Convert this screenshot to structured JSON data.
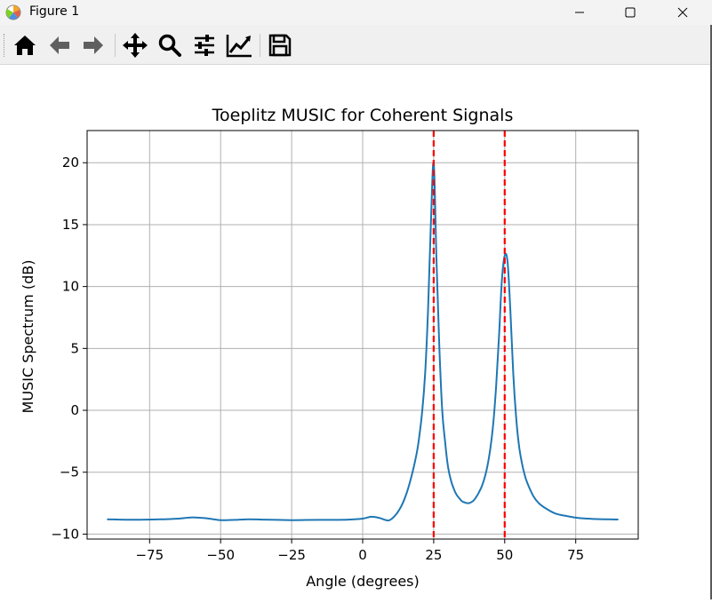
{
  "window": {
    "title": "Figure 1",
    "controls": [
      "minimize",
      "maximize",
      "close"
    ]
  },
  "toolbar": {
    "buttons": [
      {
        "name": "home",
        "icon": "home-icon"
      },
      {
        "name": "back",
        "icon": "arrow-left-icon"
      },
      {
        "name": "forward",
        "icon": "arrow-right-icon"
      },
      {
        "name": "pan",
        "icon": "move-icon"
      },
      {
        "name": "zoom",
        "icon": "magnifier-icon"
      },
      {
        "name": "configure-subplots",
        "icon": "sliders-icon"
      },
      {
        "name": "edit-axis",
        "icon": "line-chart-icon"
      },
      {
        "name": "save",
        "icon": "floppy-disk-icon"
      }
    ]
  },
  "chart_data": {
    "type": "line",
    "title": "Toeplitz MUSIC for Coherent Signals",
    "xlabel": "Angle (degrees)",
    "ylabel": "MUSIC Spectrum (dB)",
    "xlim": [
      -97,
      97
    ],
    "ylim": [
      -10.4,
      22.6
    ],
    "xticks": [
      -75,
      -50,
      -25,
      0,
      25,
      50,
      75
    ],
    "xtick_labels": [
      "−75",
      "−50",
      "−25",
      "0",
      "25",
      "50",
      "75"
    ],
    "yticks": [
      -10,
      -5,
      0,
      5,
      10,
      15,
      20
    ],
    "ytick_labels": [
      "−10",
      "−5",
      "0",
      "5",
      "10",
      "15",
      "20"
    ],
    "grid": true,
    "line_color": "#1f77b4",
    "series": [
      {
        "x": [
          -90,
          -80,
          -70,
          -65,
          -60,
          -55,
          -50,
          -45,
          -40,
          -35,
          -30,
          -25,
          -20,
          -15,
          -10,
          -5,
          0,
          3,
          6,
          9,
          11,
          13,
          15,
          17,
          19,
          20,
          21,
          22,
          23,
          24,
          25,
          26,
          27,
          28,
          29,
          30,
          31,
          32,
          33,
          34,
          35,
          36,
          37,
          38,
          39,
          40,
          41,
          42,
          43,
          44,
          45,
          46,
          47,
          48,
          49,
          50,
          51,
          52,
          53,
          54,
          55,
          56,
          57,
          58,
          60,
          62,
          65,
          68,
          72,
          76,
          80,
          85,
          90
        ],
        "y": [
          -8.8,
          -8.84,
          -8.8,
          -8.75,
          -8.65,
          -8.72,
          -8.87,
          -8.85,
          -8.8,
          -8.83,
          -8.85,
          -8.87,
          -8.86,
          -8.85,
          -8.85,
          -8.83,
          -8.75,
          -8.6,
          -8.7,
          -8.9,
          -8.6,
          -8.0,
          -7.0,
          -5.5,
          -3.5,
          -2.0,
          0.0,
          3.0,
          8.0,
          15.0,
          20.0,
          12.0,
          5.0,
          0.0,
          -2.5,
          -4.5,
          -5.6,
          -6.3,
          -6.8,
          -7.1,
          -7.35,
          -7.45,
          -7.5,
          -7.45,
          -7.3,
          -7.0,
          -6.6,
          -6.1,
          -5.4,
          -4.4,
          -3.0,
          -1.0,
          2.0,
          6.0,
          10.5,
          12.5,
          12.0,
          8.0,
          3.0,
          -0.5,
          -2.8,
          -4.2,
          -5.2,
          -5.9,
          -6.9,
          -7.5,
          -8.0,
          -8.35,
          -8.55,
          -8.7,
          -8.76,
          -8.8,
          -8.82
        ]
      }
    ],
    "vlines": [
      {
        "x": 25,
        "color": "#ff0000",
        "style": "dashed"
      },
      {
        "x": 50,
        "color": "#ff0000",
        "style": "dashed"
      }
    ]
  }
}
